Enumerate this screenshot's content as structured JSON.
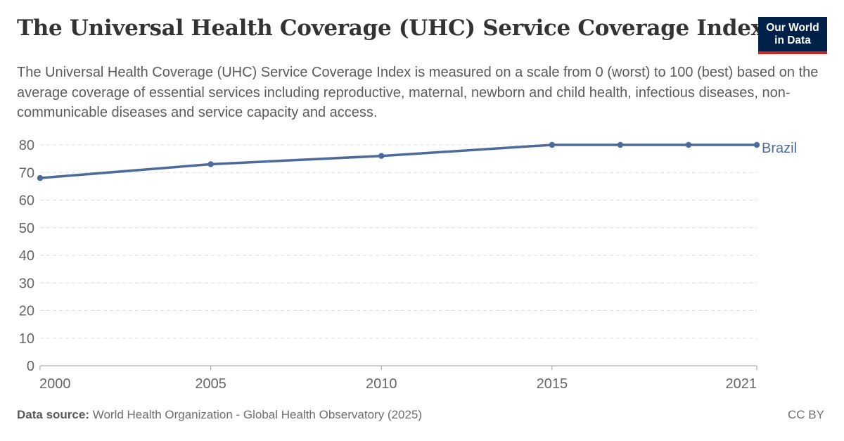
{
  "header": {
    "title": "The Universal Health Coverage (UHC) Service Coverage Index",
    "subtitle": "The Universal Health Coverage (UHC) Service Coverage Index is measured on a scale from 0 (worst) to 100 (best) based on the average coverage of essential services including reproductive, maternal, newborn and child health, infectious diseases, non-communicable diseases and service capacity and access."
  },
  "logo": {
    "line1": "Our World",
    "line2": "in Data"
  },
  "footer": {
    "source_label": "Data source:",
    "source_text": "World Health Organization - Global Health Observatory (2025)",
    "license": "CC BY"
  },
  "chart_data": {
    "type": "line",
    "title": "The Universal Health Coverage (UHC) Service Coverage Index",
    "x_ticks": [
      2000,
      2005,
      2010,
      2015,
      2021
    ],
    "y_ticks": [
      0,
      10,
      20,
      30,
      40,
      50,
      60,
      70,
      80
    ],
    "xlim": [
      2000,
      2021
    ],
    "ylim": [
      0,
      80
    ],
    "grid": true,
    "series": [
      {
        "name": "Brazil",
        "color": "#4c6a9c",
        "x": [
          2000,
          2005,
          2010,
          2015,
          2017,
          2019,
          2021
        ],
        "y": [
          68,
          73,
          76,
          80,
          80,
          80,
          80
        ]
      }
    ]
  }
}
